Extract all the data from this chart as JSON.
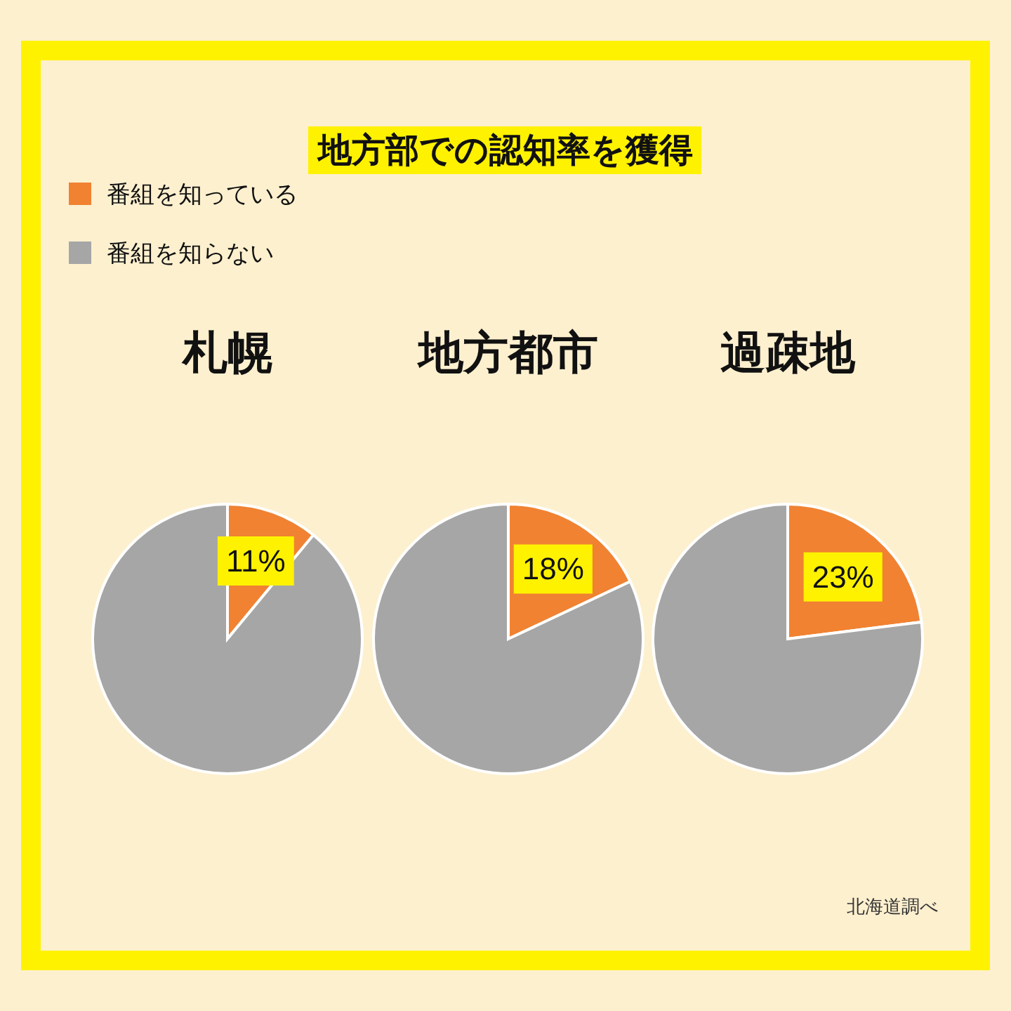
{
  "chart_data": [
    {
      "type": "other",
      "title": "地方部での認知率を獲得",
      "annotations": [
        "北海道調べ"
      ]
    },
    {
      "type": "pie",
      "title": "札幌",
      "categories": [
        "番組を知っている",
        "番組を知らない"
      ],
      "values": [
        11,
        89
      ],
      "colors": [
        "#f08232",
        "#a6a6a6"
      ],
      "value_labels": [
        "11%",
        null
      ],
      "legend": "top left"
    },
    {
      "type": "pie",
      "title": "地方都市",
      "categories": [
        null,
        null
      ],
      "values": [
        18,
        82
      ],
      "colors": [
        "#f08232",
        "#a6a6a6"
      ],
      "value_labels": [
        "18%",
        null
      ]
    },
    {
      "type": "pie",
      "title": "過疎地",
      "categories": [
        null,
        null
      ],
      "values": [
        23,
        77
      ],
      "colors": [
        "#f08232",
        "#a6a6a6"
      ],
      "value_labels": [
        "23%",
        null
      ]
    }
  ]
}
